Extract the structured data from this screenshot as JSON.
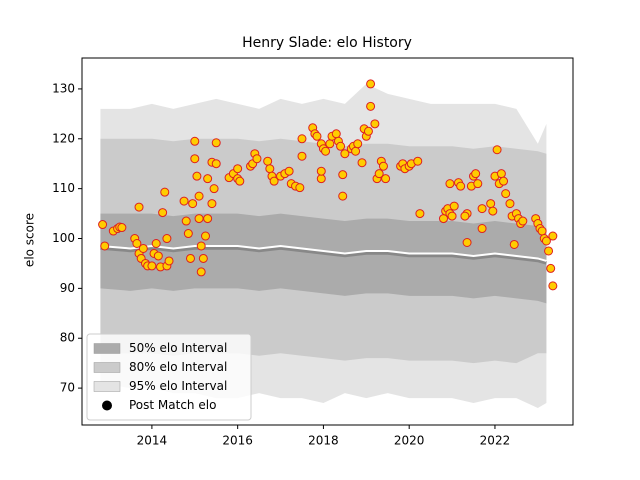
{
  "chart_data": {
    "type": "scatter",
    "title": "Henry Slade: elo History",
    "ylabel": "elo score",
    "xlim": [
      2012.37,
      2023.82
    ],
    "ylim": [
      62.6,
      136.2
    ],
    "xticks": [
      2014,
      2016,
      2018,
      2020,
      2022
    ],
    "yticks": [
      70,
      80,
      90,
      100,
      110,
      120,
      130
    ],
    "legend": "lower left",
    "band_x": [
      2012.8,
      2013.5,
      2014,
      2014.5,
      2015,
      2015.5,
      2016,
      2016.5,
      2017,
      2017.5,
      2018,
      2018.5,
      2019,
      2019.5,
      2020,
      2020.5,
      2021,
      2021.5,
      2022,
      2022.5,
      2023,
      2023.2
    ],
    "bands": [
      {
        "name": "95% elo Interval",
        "color": "#e4e4e4",
        "upper": [
          126,
          126,
          127,
          126,
          127,
          128,
          127,
          126,
          128,
          127,
          128,
          127,
          131,
          129,
          128,
          127,
          127,
          127,
          127,
          126,
          119,
          123
        ],
        "lower": [
          71,
          70,
          70,
          69,
          69,
          68,
          68,
          69,
          68,
          68,
          67,
          69,
          68,
          69,
          68,
          68,
          68,
          67,
          68,
          68,
          66,
          67
        ]
      },
      {
        "name": "80% elo Interval",
        "color": "#cbcbcb",
        "upper": [
          120,
          120,
          120,
          119.5,
          120,
          120,
          120,
          119.5,
          120,
          119.5,
          119,
          118.5,
          119,
          119,
          118.5,
          118.5,
          118.5,
          118,
          118.5,
          118,
          117.5,
          117
        ],
        "lower": [
          77,
          77,
          77,
          76.5,
          77,
          77,
          77,
          76.5,
          77,
          76.5,
          76,
          75.5,
          76,
          76,
          75.5,
          75.5,
          75.5,
          75,
          75.5,
          75,
          77,
          77
        ]
      },
      {
        "name": "50% elo Interval",
        "color": "#ababab",
        "upper": [
          105,
          105,
          105,
          104.5,
          105,
          105,
          105,
          104.5,
          105,
          104.5,
          104,
          103.5,
          104,
          104,
          103.5,
          103.5,
          103.5,
          103,
          103.5,
          103,
          102.5,
          102
        ],
        "lower": [
          90,
          89.5,
          90,
          89.5,
          90,
          90,
          90,
          89.5,
          90,
          89.5,
          89,
          88.5,
          89,
          89,
          88.5,
          88.5,
          88.5,
          88,
          88.5,
          88,
          87.5,
          87
        ]
      }
    ],
    "line": {
      "color": "#ffffff",
      "values": [
        98.5,
        98,
        98.5,
        98,
        98.5,
        98.5,
        98.5,
        98,
        98.5,
        98,
        97.5,
        97,
        97.5,
        97.5,
        97,
        97,
        97,
        96.5,
        97,
        96.5,
        96,
        95.5
      ]
    },
    "series": [
      {
        "name": "Post Match elo",
        "color": "#ffcc00",
        "edgecolor": "#dd2020",
        "x": [
          2012.85,
          2012.9,
          2013.1,
          2013.2,
          2013.25,
          2013.3,
          2013.6,
          2013.65,
          2013.7,
          2013.75,
          2013.8,
          2013.85,
          2013.9,
          2014.0,
          2014.05,
          2014.1,
          2014.15,
          2014.2,
          2014.25,
          2014.3,
          2014.35,
          2013.7,
          2014.35,
          2014.4,
          2014.75,
          2014.8,
          2014.85,
          2014.9,
          2014.95,
          2015.0,
          2015.0,
          2015.05,
          2015.1,
          2015.1,
          2015.15,
          2015.15,
          2015.2,
          2015.25,
          2015.3,
          2015.3,
          2015.4,
          2015.45,
          2015.4,
          2015.5,
          2015.5,
          2015.8,
          2015.9,
          2016.0,
          2016.0,
          2016.05,
          2016.3,
          2016.35,
          2016.4,
          2016.45,
          2016.7,
          2016.75,
          2016.8,
          2016.85,
          2017.0,
          2017.1,
          2017.2,
          2017.25,
          2017.35,
          2017.45,
          2017.5,
          2017.5,
          2017.75,
          2017.8,
          2017.85,
          2017.95,
          2018.0,
          2018.05,
          2018.15,
          2018.2,
          2018.3,
          2018.35,
          2018.4,
          2017.95,
          2017.95,
          2018.45,
          2018.45,
          2018.5,
          2018.65,
          2018.7,
          2018.75,
          2018.8,
          2018.9,
          2018.95,
          2019.0,
          2019.05,
          2019.1,
          2019.1,
          2019.2,
          2019.25,
          2019.3,
          2019.35,
          2019.4,
          2019.45,
          2019.8,
          2019.85,
          2019.9,
          2020.0,
          2020.05,
          2020.2,
          2020.25,
          2020.8,
          2020.85,
          2020.9,
          2020.95,
          2021.0,
          2021.05,
          2020.95,
          2021.15,
          2021.2,
          2021.35,
          2021.3,
          2021.35,
          2021.45,
          2021.5,
          2021.55,
          2021.6,
          2021.7,
          2021.7,
          2021.9,
          2021.95,
          2022.0,
          2022.05,
          2022.1,
          2022.15,
          2022.2,
          2022.25,
          2022.35,
          2022.4,
          2022.45,
          2022.5,
          2022.55,
          2022.6,
          2022.65,
          2022.95,
          2023.0,
          2023.05,
          2023.1,
          2023.15,
          2023.2,
          2023.25,
          2023.3,
          2023.35,
          2023.35
        ],
        "values": [
          102.8,
          98.5,
          101.5,
          102,
          102.3,
          102.2,
          100,
          99,
          97,
          96,
          98,
          95,
          94.5,
          94.5,
          97,
          99,
          96.5,
          94.3,
          105.2,
          109.3,
          100,
          106.3,
          94.5,
          95.5,
          107.5,
          103.5,
          101,
          96,
          107,
          119.5,
          116,
          112.5,
          108.5,
          104,
          98.5,
          93.3,
          96,
          100.5,
          104,
          112,
          107,
          110,
          115.3,
          115,
          119.2,
          112.2,
          113,
          114,
          112,
          111.5,
          114.5,
          115,
          117,
          116,
          115.5,
          114,
          112.5,
          111.5,
          112.5,
          113,
          113.5,
          111,
          110.5,
          110.2,
          116.5,
          120,
          122.2,
          121,
          120.5,
          119,
          118,
          117.5,
          119,
          120.5,
          121,
          119.5,
          118.5,
          112,
          113.5,
          112.8,
          108.5,
          117,
          118,
          118.5,
          117.5,
          119,
          115.2,
          122,
          120.5,
          121.5,
          126.5,
          131,
          123,
          112,
          113,
          115.5,
          114.5,
          112,
          114.5,
          115,
          114,
          114.5,
          115,
          115.5,
          105,
          104,
          105.5,
          106,
          105,
          104.5,
          106.5,
          111,
          111.2,
          110.5,
          105,
          104.5,
          99.2,
          110.5,
          112.5,
          113,
          111,
          102,
          106,
          107,
          105.5,
          112.5,
          117.8,
          111,
          113,
          111.5,
          109,
          107,
          104.5,
          98.8,
          105,
          104,
          103,
          103.5,
          104,
          103,
          102,
          101.5,
          100,
          99.5,
          97.5,
          94,
          90.5,
          100.5
        ]
      }
    ]
  }
}
